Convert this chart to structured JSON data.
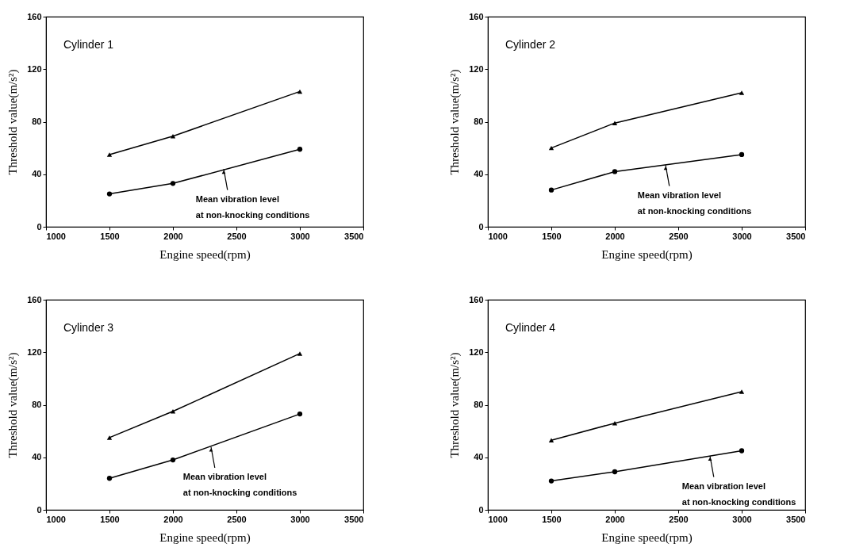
{
  "chart_data": [
    {
      "type": "line",
      "title": "Cylinder 1",
      "xlabel": "Engine speed(rpm)",
      "ylabel": "Threshold value(m/s²)",
      "x": [
        1500,
        2000,
        3000
      ],
      "series": [
        {
          "color": "#000000",
          "marker": "triangle",
          "values": [
            55,
            69,
            103
          ]
        },
        {
          "color": "#000000",
          "marker": "circle",
          "values": [
            25,
            33,
            59
          ]
        }
      ],
      "annotations": [
        {
          "text": "Mean vibration level\nat non-knocking conditions",
          "x": 2400,
          "y": 44
        }
      ],
      "xlim": [
        1000,
        3500
      ],
      "xticks": [
        1000,
        1500,
        2000,
        2500,
        3000,
        3500
      ],
      "ylim": [
        0,
        160
      ],
      "yticks": [
        0,
        40,
        80,
        120,
        160
      ]
    },
    {
      "type": "line",
      "title": "Cylinder 2",
      "xlabel": "Engine speed(rpm)",
      "ylabel": "Threshold value(m/s²)",
      "x": [
        1500,
        2000,
        3000
      ],
      "series": [
        {
          "color": "#000000",
          "marker": "triangle",
          "values": [
            60,
            79,
            102
          ]
        },
        {
          "color": "#000000",
          "marker": "circle",
          "values": [
            28,
            42,
            55
          ]
        }
      ],
      "annotations": [
        {
          "text": "Mean vibration level\nat non-knocking conditions",
          "x": 2400,
          "y": 47
        }
      ],
      "xlim": [
        1000,
        3500
      ],
      "xticks": [
        1000,
        1500,
        2000,
        2500,
        3000,
        3500
      ],
      "ylim": [
        0,
        160
      ],
      "yticks": [
        0,
        40,
        80,
        120,
        160
      ]
    },
    {
      "type": "line",
      "title": "Cylinder 3",
      "xlabel": "Engine speed(rpm)",
      "ylabel": "Threshold value(m/s²)",
      "x": [
        1500,
        2000,
        3000
      ],
      "series": [
        {
          "color": "#000000",
          "marker": "triangle",
          "values": [
            55,
            75,
            119
          ]
        },
        {
          "color": "#000000",
          "marker": "circle",
          "values": [
            24,
            38,
            73
          ]
        }
      ],
      "annotations": [
        {
          "text": "Mean vibration level\nat non-knocking conditions",
          "x": 2300,
          "y": 48
        }
      ],
      "xlim": [
        1000,
        3500
      ],
      "xticks": [
        1000,
        1500,
        2000,
        2500,
        3000,
        3500
      ],
      "ylim": [
        0,
        160
      ],
      "yticks": [
        0,
        40,
        80,
        120,
        160
      ]
    },
    {
      "type": "line",
      "title": "Cylinder 4",
      "xlabel": "Engine speed(rpm)",
      "ylabel": "Threshold value(m/s²)",
      "x": [
        1500,
        2000,
        3000
      ],
      "series": [
        {
          "color": "#000000",
          "marker": "triangle",
          "values": [
            53,
            66,
            90
          ]
        },
        {
          "color": "#000000",
          "marker": "circle",
          "values": [
            22,
            29,
            45
          ]
        }
      ],
      "annotations": [
        {
          "text": "Mean vibration level\nat non-knocking conditions",
          "x": 2750,
          "y": 41
        }
      ],
      "xlim": [
        1000,
        3500
      ],
      "xticks": [
        1000,
        1500,
        2000,
        2500,
        3000,
        3500
      ],
      "ylim": [
        0,
        160
      ],
      "yticks": [
        0,
        40,
        80,
        120,
        160
      ]
    }
  ]
}
